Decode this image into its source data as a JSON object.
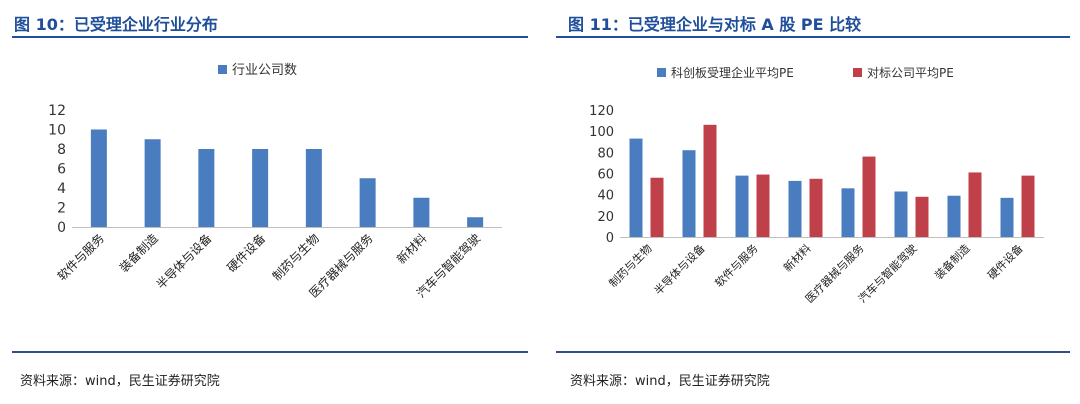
{
  "panels": [
    {
      "title": "图 10：已受理企业行业分布",
      "source": "资料来源：wind，民生证券研究院"
    },
    {
      "title": "图 11：已受理企业与对标 A 股 PE 比较",
      "source": "资料来源：wind，民生证券研究院"
    }
  ],
  "chart_data": [
    {
      "type": "bar",
      "categories": [
        "软件与服务",
        "装备制造",
        "半导体与设备",
        "硬件设备",
        "制药与生物",
        "医疗器械与服务",
        "新材料",
        "汽车与智能驾驶"
      ],
      "series": [
        {
          "name": "行业公司数",
          "values": [
            10,
            9,
            8,
            8,
            8,
            5,
            3,
            1
          ]
        }
      ],
      "ylim": [
        0,
        12
      ],
      "yticks": [
        0,
        2,
        4,
        6,
        8,
        10,
        12
      ],
      "legend": "top-center",
      "grid": false,
      "colors": [
        "#4a7cc0"
      ]
    },
    {
      "type": "bar",
      "categories": [
        "制药与生物",
        "半导体与设备",
        "软件与服务",
        "新材料",
        "医疗器械与服务",
        "汽车与智能驾驶",
        "装备制造",
        "硬件设备"
      ],
      "series": [
        {
          "name": "科创板受理企业平均PE",
          "values": [
            93,
            82,
            58,
            53,
            46,
            43,
            39,
            37
          ]
        },
        {
          "name": "对标公司平均PE",
          "values": [
            56,
            106,
            59,
            55,
            76,
            38,
            61,
            58
          ]
        }
      ],
      "ylim": [
        0,
        120
      ],
      "yticks": [
        0,
        20,
        40,
        60,
        80,
        100,
        120
      ],
      "legend": "top-center",
      "grid": false,
      "colors": [
        "#4a7cc0",
        "#c0404a"
      ]
    }
  ]
}
